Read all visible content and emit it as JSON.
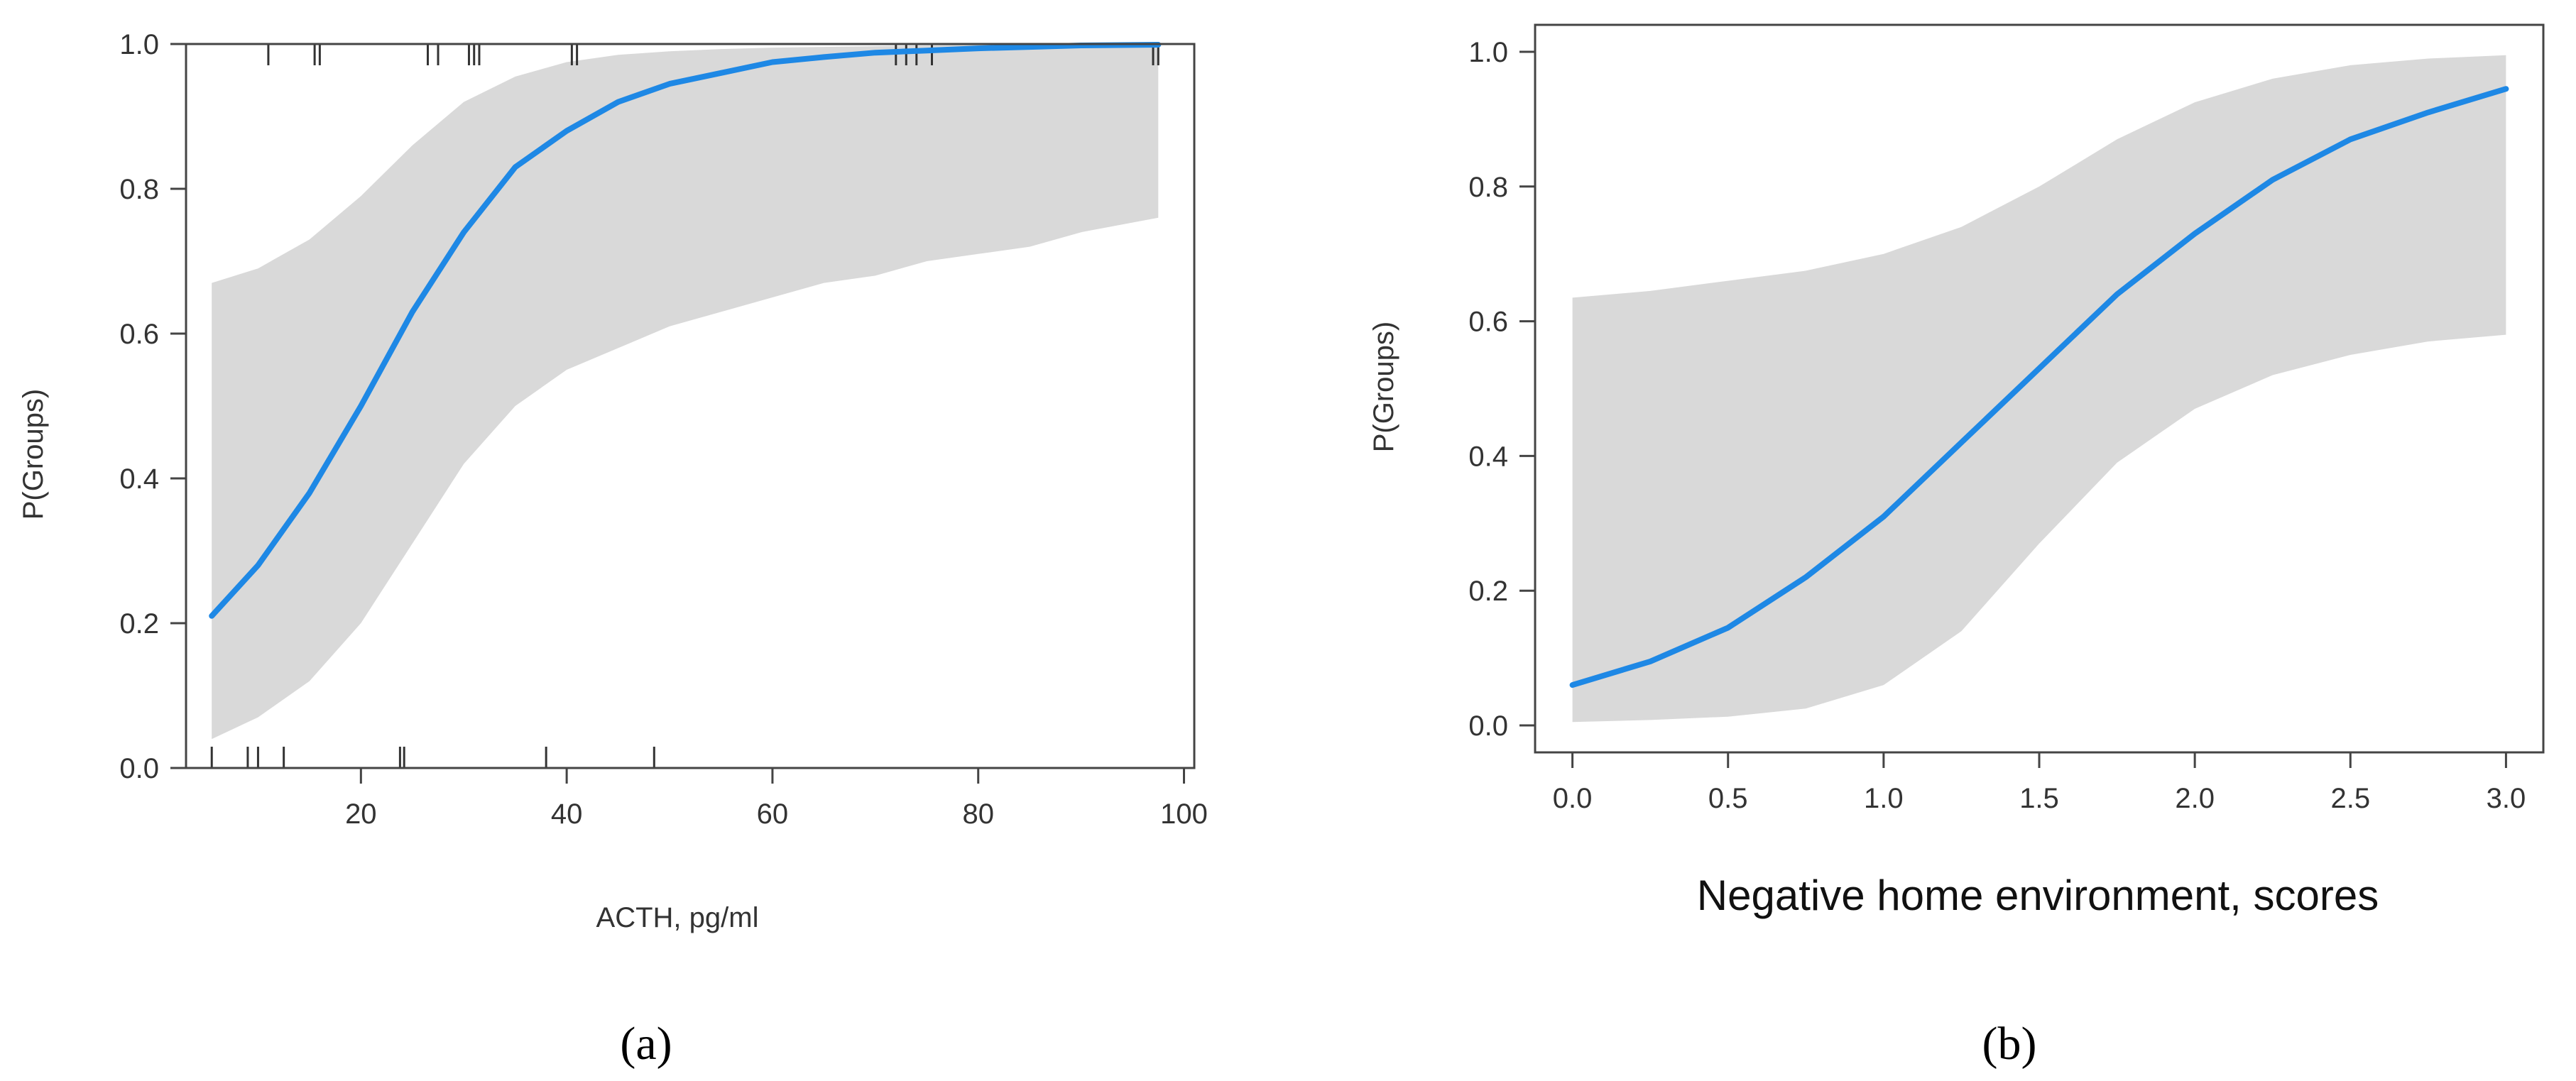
{
  "chart_data": [
    {
      "type": "line",
      "panel_label": "(a)",
      "xlabel": "ACTH, pg/ml",
      "ylabel": "P(Groups)",
      "xlim": [
        3,
        101
      ],
      "ylim": [
        0,
        1
      ],
      "xticks": [
        20,
        40,
        60,
        80,
        100
      ],
      "yticks": [
        0.0,
        0.2,
        0.4,
        0.6,
        0.8,
        1.0
      ],
      "x_tick_labels": [
        "20",
        "40",
        "60",
        "80",
        "100"
      ],
      "y_tick_labels": [
        "0.0",
        "0.2",
        "0.4",
        "0.6",
        "0.8",
        "1.0"
      ],
      "grid": false,
      "rug_bottom": [
        5.5,
        9,
        10,
        12.5,
        23.8,
        24.2,
        38,
        48.5
      ],
      "rug_top": [
        11,
        15.5,
        16,
        26.5,
        27.5,
        30.5,
        31,
        31.5,
        40.5,
        41,
        72,
        73,
        74,
        75.5,
        97,
        97.5
      ],
      "series": [
        {
          "x": [
            5.5,
            10,
            15,
            20,
            25,
            30,
            35,
            40,
            45,
            50,
            55,
            60,
            65,
            70,
            75,
            80,
            85,
            90,
            97.5
          ],
          "y": [
            0.21,
            0.28,
            0.38,
            0.5,
            0.63,
            0.74,
            0.83,
            0.88,
            0.92,
            0.945,
            0.96,
            0.975,
            0.982,
            0.988,
            0.991,
            0.994,
            0.996,
            0.998,
            0.999
          ],
          "lower": [
            0.04,
            0.07,
            0.12,
            0.2,
            0.31,
            0.42,
            0.5,
            0.55,
            0.58,
            0.61,
            0.63,
            0.65,
            0.67,
            0.68,
            0.7,
            0.71,
            0.72,
            0.74,
            0.76
          ],
          "upper": [
            0.67,
            0.69,
            0.73,
            0.79,
            0.86,
            0.92,
            0.955,
            0.975,
            0.985,
            0.99,
            0.993,
            0.995,
            0.996,
            0.997,
            0.998,
            0.999,
            0.999,
            0.999,
            0.999
          ]
        }
      ]
    },
    {
      "type": "line",
      "panel_label": "(b)",
      "xlabel": "Negative home environment, scores",
      "ylabel": "P(Groups)",
      "xlim": [
        -0.12,
        3.12
      ],
      "ylim": [
        -0.04,
        1.04
      ],
      "xticks": [
        0.0,
        0.5,
        1.0,
        1.5,
        2.0,
        2.5,
        3.0
      ],
      "yticks": [
        0.0,
        0.2,
        0.4,
        0.6,
        0.8,
        1.0
      ],
      "x_tick_labels": [
        "0.0",
        "0.5",
        "1.0",
        "1.5",
        "2.0",
        "2.5",
        "3.0"
      ],
      "y_tick_labels": [
        "0.0",
        "0.2",
        "0.4",
        "0.6",
        "0.8",
        "1.0"
      ],
      "grid": false,
      "series": [
        {
          "x": [
            0.0,
            0.25,
            0.5,
            0.75,
            1.0,
            1.25,
            1.5,
            1.75,
            2.0,
            2.25,
            2.5,
            2.75,
            3.0
          ],
          "y": [
            0.06,
            0.095,
            0.145,
            0.22,
            0.31,
            0.42,
            0.53,
            0.64,
            0.73,
            0.81,
            0.87,
            0.91,
            0.945
          ],
          "lower": [
            0.005,
            0.008,
            0.013,
            0.025,
            0.06,
            0.14,
            0.27,
            0.39,
            0.47,
            0.52,
            0.55,
            0.57,
            0.58
          ],
          "upper": [
            0.635,
            0.645,
            0.66,
            0.675,
            0.7,
            0.74,
            0.8,
            0.87,
            0.925,
            0.96,
            0.98,
            0.99,
            0.995
          ]
        }
      ]
    }
  ]
}
